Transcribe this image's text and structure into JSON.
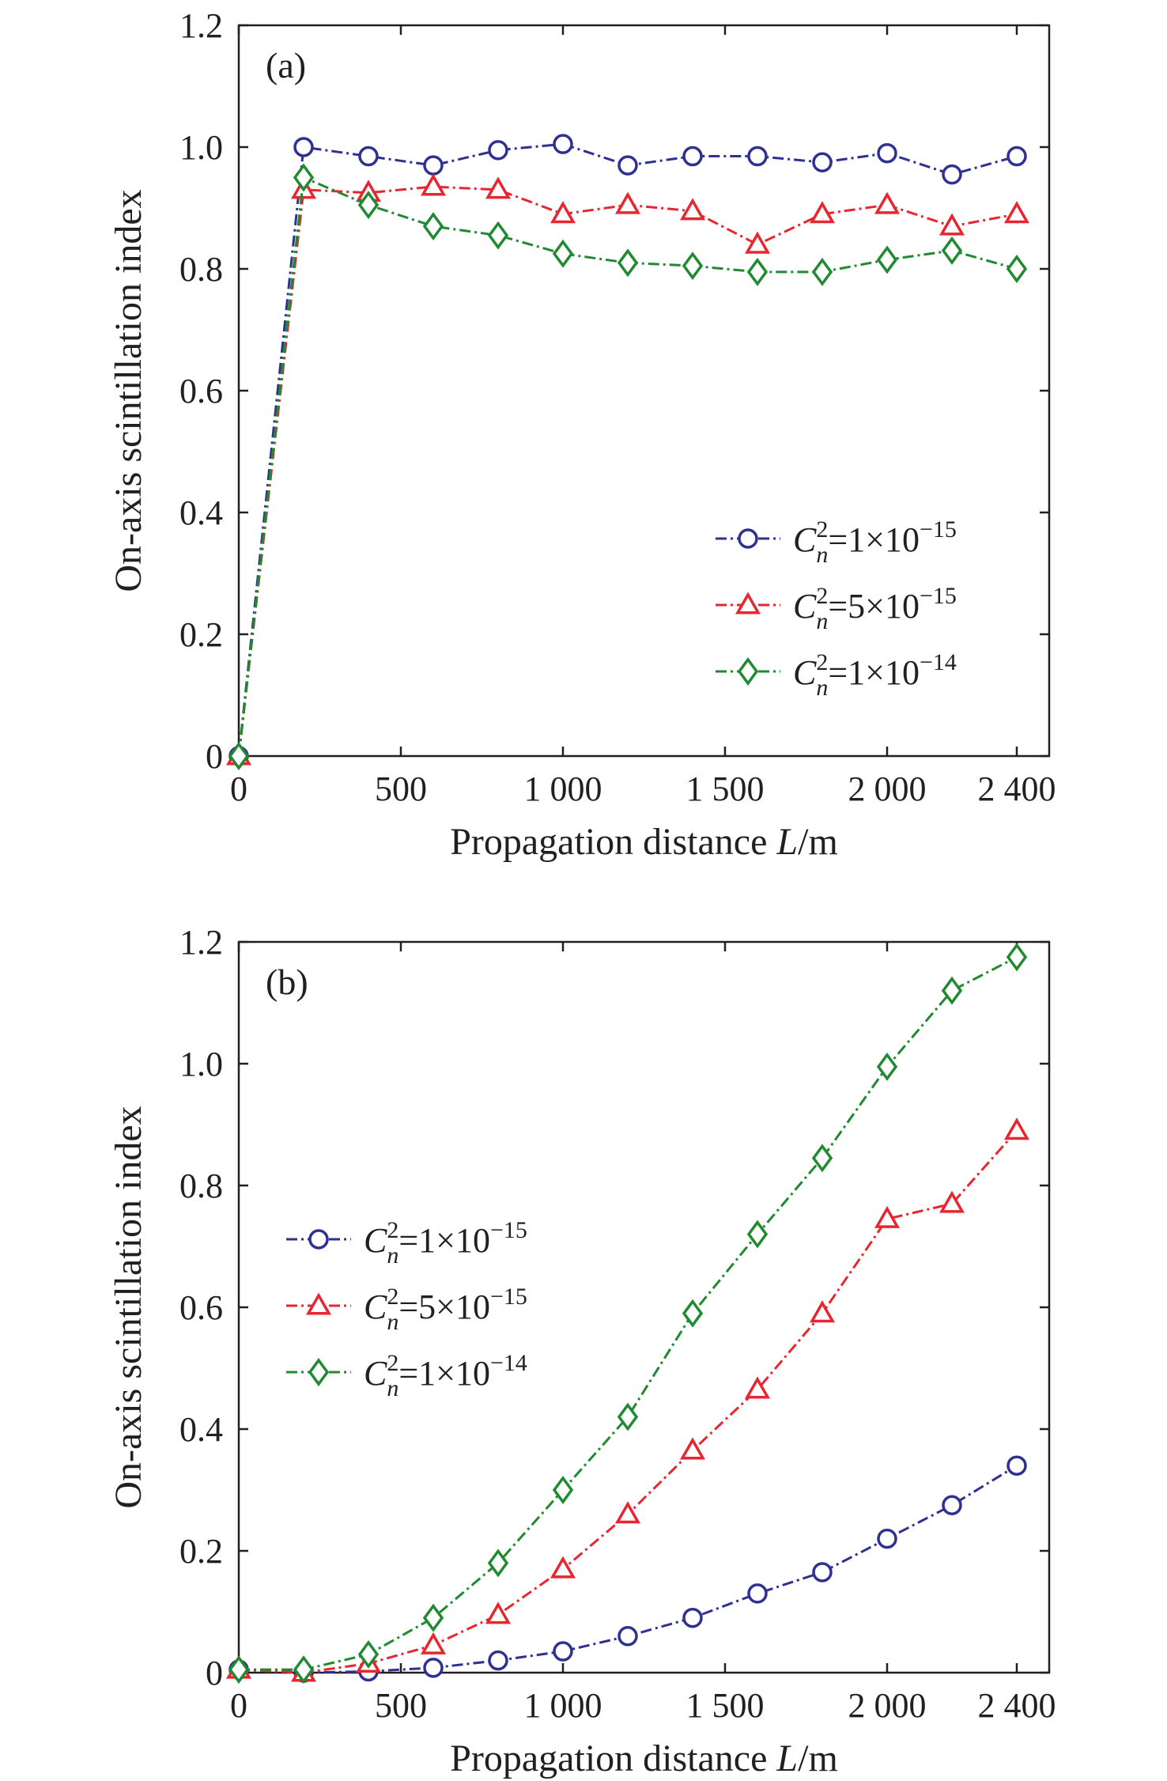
{
  "chart_data": [
    {
      "type": "line",
      "panel_label": "(a)",
      "xlabel_main": "Propagation distance ",
      "xlabel_var": "L",
      "xlabel_unit": "/m",
      "ylabel": "On-axis scintillation index",
      "xlim": [
        0,
        2500
      ],
      "ylim": [
        0,
        1.2
      ],
      "xticks": [
        0,
        500,
        1000,
        1500,
        2000,
        2400
      ],
      "xtick_labels": [
        "0",
        "500",
        "1 000",
        "1 500",
        "2 000",
        "2 400"
      ],
      "yticks": [
        0,
        0.2,
        0.4,
        0.6,
        0.8,
        1.0,
        1.2
      ],
      "ytick_labels": [
        "0",
        "0.2",
        "0.4",
        "0.6",
        "0.8",
        "1.0",
        "1.2"
      ],
      "grid": false,
      "legend_position": "lower-right",
      "x": [
        0,
        200,
        400,
        600,
        800,
        1000,
        1200,
        1400,
        1600,
        1800,
        2000,
        2200,
        2400
      ],
      "series": [
        {
          "name": "C_n^2=1×10^-15",
          "legend": {
            "base": "C",
            "sub": "n",
            "sup": "2",
            "eq": "=1×10",
            "exp": "−15"
          },
          "color": "#2e3192",
          "marker": "circle",
          "values": [
            0,
            1.0,
            0.985,
            0.97,
            0.995,
            1.005,
            0.97,
            0.985,
            0.985,
            0.975,
            0.99,
            0.955,
            0.985
          ]
        },
        {
          "name": "C_n^2=5×10^-15",
          "legend": {
            "base": "C",
            "sub": "n",
            "sup": "2",
            "eq": "=5×10",
            "exp": "−15"
          },
          "color": "#e8262f",
          "marker": "triangle",
          "values": [
            0,
            0.93,
            0.925,
            0.935,
            0.93,
            0.89,
            0.905,
            0.895,
            0.84,
            0.89,
            0.905,
            0.87,
            0.89
          ]
        },
        {
          "name": "C_n^2=1×10^-14",
          "legend": {
            "base": "C",
            "sub": "n",
            "sup": "2",
            "eq": "=1×10",
            "exp": "−14"
          },
          "color": "#1f8a2f",
          "marker": "diamond",
          "values": [
            0,
            0.95,
            0.905,
            0.87,
            0.855,
            0.825,
            0.81,
            0.805,
            0.795,
            0.795,
            0.815,
            0.83,
            0.8
          ]
        }
      ]
    },
    {
      "type": "line",
      "panel_label": "(b)",
      "xlabel_main": "Propagation distance ",
      "xlabel_var": "L",
      "xlabel_unit": "/m",
      "ylabel": "On-axis scintillation index",
      "xlim": [
        0,
        2500
      ],
      "ylim": [
        0,
        1.2
      ],
      "xticks": [
        0,
        500,
        1000,
        1500,
        2000,
        2400
      ],
      "xtick_labels": [
        "0",
        "500",
        "1 000",
        "1 500",
        "2 000",
        "2 400"
      ],
      "yticks": [
        0,
        0.2,
        0.4,
        0.6,
        0.8,
        1.0,
        1.2
      ],
      "ytick_labels": [
        "0",
        "0.2",
        "0.4",
        "0.6",
        "0.8",
        "1.0",
        "1.2"
      ],
      "grid": false,
      "legend_position": "middle-left",
      "x": [
        0,
        200,
        400,
        600,
        800,
        1000,
        1200,
        1400,
        1600,
        1800,
        2000,
        2200,
        2400
      ],
      "series": [
        {
          "name": "C_n^2=1×10^-15",
          "legend": {
            "base": "C",
            "sub": "n",
            "sup": "2",
            "eq": "=1×10",
            "exp": "−15"
          },
          "color": "#2e3192",
          "marker": "circle",
          "values": [
            0.005,
            0.0,
            0.002,
            0.008,
            0.02,
            0.035,
            0.06,
            0.09,
            0.13,
            0.165,
            0.22,
            0.275,
            0.34
          ]
        },
        {
          "name": "C_n^2=5×10^-15",
          "legend": {
            "base": "C",
            "sub": "n",
            "sup": "2",
            "eq": "=5×10",
            "exp": "−15"
          },
          "color": "#e8262f",
          "marker": "triangle",
          "values": [
            0.005,
            0.0,
            0.015,
            0.045,
            0.095,
            0.17,
            0.26,
            0.365,
            0.465,
            0.59,
            0.745,
            0.77,
            0.89
          ]
        },
        {
          "name": "C_n^2=1×10^-14",
          "legend": {
            "base": "C",
            "sub": "n",
            "sup": "2",
            "eq": "=1×10",
            "exp": "−14"
          },
          "color": "#1f8a2f",
          "marker": "diamond",
          "values": [
            0.005,
            0.005,
            0.03,
            0.09,
            0.18,
            0.3,
            0.42,
            0.59,
            0.72,
            0.845,
            0.995,
            1.12,
            1.175
          ]
        }
      ]
    }
  ]
}
